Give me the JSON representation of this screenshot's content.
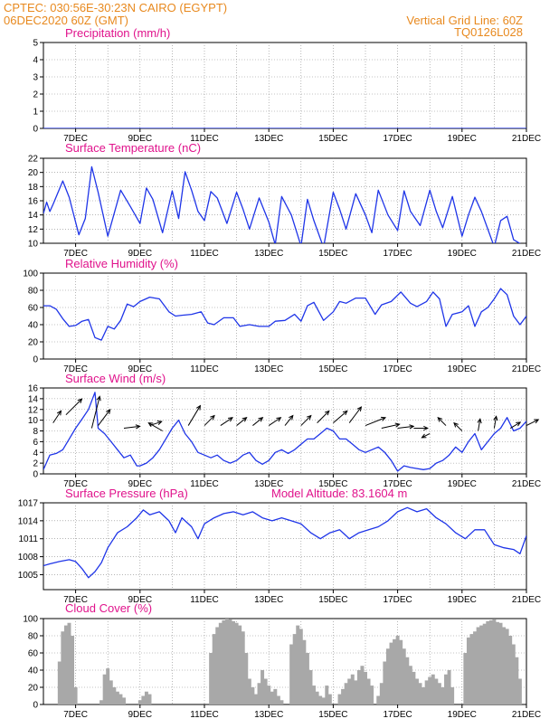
{
  "header": {
    "line1_left": "CPTEC:   030:56E-30:23N   CAIRO (EGYPT)",
    "line2_left": "06DEC2020 60Z (GMT)",
    "line1_right": "Vertical Grid Line: 60Z",
    "line2_right": "TQ0126L028"
  },
  "colors": {
    "header": "#e8891e",
    "title": "#e0138c",
    "line": "#1f35e8",
    "bar": "#a8a8a8",
    "grid": "#888888"
  },
  "x_axis": {
    "start_day": 6.0,
    "end_day": 21.0,
    "ticks": [
      7,
      9,
      11,
      13,
      15,
      17,
      19,
      21
    ],
    "tick_labels": [
      "7DEC",
      "9DEC",
      "11DEC",
      "13DEC",
      "15DEC",
      "17DEC",
      "19DEC",
      "21DEC"
    ]
  },
  "chart_data": [
    {
      "id": "precip",
      "type": "line",
      "title": "Precipitation (mm/h)",
      "ylim": [
        0,
        5
      ],
      "yticks": [
        0,
        1,
        2,
        3,
        4,
        5
      ],
      "x": [
        6.0,
        21.0
      ],
      "y": [
        0,
        0
      ]
    },
    {
      "id": "temp",
      "type": "line",
      "title": "Surface Temperature (nC)",
      "ylim": [
        10,
        22
      ],
      "yticks": [
        10,
        12,
        14,
        16,
        18,
        20,
        22
      ],
      "x": [
        6.0,
        6.1,
        6.2,
        6.3,
        6.6,
        6.8,
        7.1,
        7.3,
        7.5,
        7.7,
        8.0,
        8.4,
        8.7,
        9.0,
        9.2,
        9.4,
        9.7,
        10.0,
        10.2,
        10.4,
        10.6,
        10.8,
        11.0,
        11.2,
        11.4,
        11.7,
        12.0,
        12.2,
        12.4,
        12.7,
        13.0,
        13.2,
        13.4,
        13.7,
        14.0,
        14.2,
        14.4,
        14.7,
        15.0,
        15.2,
        15.4,
        15.7,
        16.0,
        16.2,
        16.4,
        16.7,
        17.0,
        17.2,
        17.4,
        17.7,
        18.0,
        18.2,
        18.4,
        18.7,
        19.0,
        19.2,
        19.4,
        19.6,
        20.0,
        20.2,
        20.4,
        20.6,
        20.9,
        21.0
      ],
      "y": [
        14.2,
        15.8,
        14.5,
        15.5,
        18.8,
        16.5,
        11.2,
        13.5,
        20.8,
        17.2,
        11.0,
        17.5,
        15.2,
        12.8,
        17.8,
        16.2,
        11.5,
        17.4,
        13.5,
        20.1,
        17.5,
        14.5,
        13.2,
        17.3,
        16.4,
        12.8,
        17.2,
        14.8,
        12.0,
        16.4,
        13.0,
        9.8,
        16.6,
        14.0,
        9.6,
        16.2,
        13.2,
        9.4,
        17.2,
        14.8,
        12.0,
        17.0,
        14.0,
        11.5,
        17.5,
        14.0,
        11.8,
        17.4,
        14.5,
        12.5,
        17.5,
        14.5,
        12.2,
        16.6,
        11.0,
        14.0,
        16.5,
        14.5,
        9.5,
        13.2,
        13.8,
        10.5,
        9.7,
        9.5
      ]
    },
    {
      "id": "rh",
      "type": "line",
      "title": "Relative Humidity (%)",
      "ylim": [
        0,
        100
      ],
      "yticks": [
        0,
        20,
        40,
        60,
        80,
        100
      ],
      "x": [
        6.0,
        6.2,
        6.4,
        6.6,
        6.8,
        7.0,
        7.2,
        7.4,
        7.6,
        7.8,
        8.0,
        8.2,
        8.4,
        8.6,
        8.8,
        9.0,
        9.3,
        9.6,
        9.9,
        10.1,
        10.3,
        10.6,
        10.9,
        11.1,
        11.3,
        11.6,
        11.9,
        12.1,
        12.4,
        12.7,
        13.0,
        13.2,
        13.5,
        13.8,
        14.0,
        14.2,
        14.4,
        14.7,
        15.0,
        15.2,
        15.4,
        15.7,
        16.0,
        16.3,
        16.5,
        16.8,
        17.1,
        17.4,
        17.6,
        17.9,
        18.1,
        18.3,
        18.5,
        18.7,
        19.0,
        19.2,
        19.4,
        19.6,
        19.8,
        20.0,
        20.2,
        20.4,
        20.6,
        20.8,
        21.0
      ],
      "y": [
        62,
        62,
        58,
        47,
        38,
        39,
        44,
        46,
        25,
        22,
        38,
        35,
        45,
        64,
        61,
        67,
        72,
        70,
        55,
        50,
        51,
        52,
        55,
        42,
        40,
        48,
        48,
        38,
        40,
        38,
        38,
        44,
        45,
        52,
        44,
        62,
        66,
        45,
        55,
        67,
        65,
        71,
        71,
        52,
        63,
        67,
        78,
        65,
        61,
        67,
        78,
        70,
        38,
        52,
        55,
        62,
        38,
        55,
        60,
        70,
        82,
        75,
        50,
        40,
        50
      ]
    },
    {
      "id": "wind",
      "type": "line",
      "title": "Surface Wind (m/s)",
      "ylim": [
        0,
        16
      ],
      "yticks": [
        0,
        2,
        4,
        6,
        8,
        10,
        12,
        14,
        16
      ],
      "x": [
        6.0,
        6.2,
        6.4,
        6.6,
        6.8,
        7.0,
        7.2,
        7.4,
        7.6,
        7.7,
        7.9,
        8.1,
        8.3,
        8.5,
        8.7,
        8.9,
        9.0,
        9.2,
        9.4,
        9.6,
        9.8,
        10.0,
        10.2,
        10.4,
        10.6,
        10.8,
        11.0,
        11.2,
        11.4,
        11.6,
        11.8,
        12.0,
        12.2,
        12.4,
        12.6,
        12.8,
        13.0,
        13.2,
        13.4,
        13.6,
        13.8,
        14.0,
        14.2,
        14.4,
        14.6,
        14.8,
        15.0,
        15.2,
        15.4,
        15.6,
        15.8,
        16.0,
        16.2,
        16.4,
        16.6,
        16.8,
        17.0,
        17.2,
        17.4,
        17.6,
        17.8,
        18.0,
        18.2,
        18.4,
        18.6,
        18.8,
        19.0,
        19.2,
        19.4,
        19.6,
        19.8,
        20.0,
        20.2,
        20.4,
        20.6,
        20.8,
        21.0
      ],
      "y": [
        0.8,
        3.5,
        3.8,
        4.5,
        6.5,
        8.5,
        10.2,
        12.0,
        15.2,
        8.5,
        7.5,
        6.0,
        4.5,
        3.0,
        3.5,
        1.5,
        1.5,
        2.0,
        3.0,
        4.5,
        6.5,
        8.5,
        10.0,
        7.5,
        6.0,
        4.0,
        3.5,
        3.0,
        3.5,
        2.5,
        2.0,
        2.5,
        3.5,
        4.0,
        2.5,
        1.8,
        2.5,
        4.0,
        4.5,
        3.8,
        4.5,
        5.5,
        6.5,
        6.5,
        7.5,
        8.5,
        8.0,
        6.5,
        6.5,
        5.5,
        4.5,
        4.0,
        4.5,
        5.0,
        4.0,
        2.5,
        0.5,
        1.5,
        1.2,
        1.0,
        0.8,
        1.0,
        2.0,
        2.5,
        3.5,
        5.0,
        4.0,
        6.0,
        7.5,
        4.5,
        6.0,
        7.5,
        8.5,
        10.5,
        8.0,
        8.5,
        9.8
      ]
    },
    {
      "id": "pressure",
      "type": "line",
      "title": "Surface Pressure (hPa)",
      "subtitle": "Model Altitude: 83.1604 m",
      "ylim": [
        1002.5,
        1017
      ],
      "yticks": [
        1005,
        1008,
        1011,
        1014,
        1017
      ],
      "x": [
        6.0,
        6.2,
        6.5,
        6.8,
        7.0,
        7.2,
        7.4,
        7.6,
        7.8,
        8.0,
        8.3,
        8.6,
        8.9,
        9.1,
        9.3,
        9.6,
        9.9,
        10.1,
        10.3,
        10.6,
        10.8,
        11.0,
        11.3,
        11.6,
        11.9,
        12.2,
        12.5,
        12.8,
        13.1,
        13.4,
        13.7,
        14.0,
        14.3,
        14.6,
        14.9,
        15.2,
        15.5,
        15.8,
        16.1,
        16.4,
        16.7,
        17.0,
        17.3,
        17.6,
        17.9,
        18.2,
        18.5,
        18.8,
        19.1,
        19.4,
        19.7,
        20.0,
        20.3,
        20.6,
        20.8,
        21.0
      ],
      "y": [
        1006.5,
        1006.8,
        1007.2,
        1007.5,
        1007.2,
        1006.0,
        1004.5,
        1005.5,
        1007.0,
        1009.5,
        1012.0,
        1013.0,
        1014.5,
        1015.8,
        1015.0,
        1015.5,
        1014.0,
        1012.0,
        1014.5,
        1013.0,
        1011.0,
        1013.5,
        1014.5,
        1015.2,
        1015.5,
        1015.0,
        1015.5,
        1014.5,
        1014.0,
        1014.5,
        1014.0,
        1013.5,
        1012.0,
        1011.0,
        1012.0,
        1012.5,
        1011.0,
        1012.0,
        1012.5,
        1013.0,
        1014.0,
        1015.5,
        1016.2,
        1015.5,
        1016.0,
        1014.5,
        1013.5,
        1012.0,
        1011.0,
        1012.5,
        1012.5,
        1010.0,
        1009.5,
        1009.2,
        1008.5,
        1011.5
      ]
    },
    {
      "id": "cloud",
      "type": "bar",
      "title": "Cloud Cover (%)",
      "ylim": [
        0,
        100
      ],
      "yticks": [
        0,
        20,
        40,
        60,
        80,
        100
      ],
      "x": [
        6.5,
        6.6,
        6.7,
        6.8,
        6.9,
        7.0,
        7.8,
        7.9,
        8.0,
        8.1,
        8.2,
        8.3,
        8.4,
        8.5,
        9.0,
        9.1,
        9.2,
        9.3,
        11.2,
        11.3,
        11.4,
        11.5,
        11.6,
        11.7,
        11.8,
        11.9,
        12.0,
        12.1,
        12.2,
        12.3,
        12.4,
        12.5,
        12.6,
        12.7,
        12.8,
        12.9,
        13.0,
        13.1,
        13.2,
        13.3,
        13.4,
        13.7,
        13.8,
        13.9,
        14.0,
        14.1,
        14.2,
        14.3,
        14.4,
        14.5,
        14.6,
        14.7,
        14.8,
        14.9,
        15.2,
        15.3,
        15.4,
        15.5,
        15.6,
        15.7,
        15.8,
        15.9,
        16.0,
        16.1,
        16.2,
        16.4,
        16.5,
        16.6,
        16.7,
        16.8,
        16.9,
        17.0,
        17.1,
        17.2,
        17.3,
        17.4,
        17.5,
        17.6,
        17.7,
        17.8,
        17.9,
        18.0,
        18.1,
        18.2,
        18.3,
        18.4,
        18.5,
        18.6,
        18.7,
        19.1,
        19.2,
        19.3,
        19.4,
        19.5,
        19.6,
        19.7,
        19.8,
        19.9,
        20.0,
        20.1,
        20.2,
        20.3,
        20.4,
        20.5,
        20.6,
        20.7,
        20.8
      ],
      "y": [
        50,
        85,
        92,
        95,
        80,
        20,
        5,
        35,
        42,
        28,
        20,
        15,
        12,
        8,
        5,
        10,
        15,
        12,
        60,
        82,
        90,
        95,
        98,
        100,
        99,
        97,
        95,
        92,
        85,
        60,
        30,
        20,
        12,
        25,
        40,
        30,
        22,
        15,
        18,
        10,
        5,
        70,
        82,
        92,
        88,
        75,
        60,
        40,
        22,
        15,
        10,
        8,
        22,
        12,
        12,
        18,
        25,
        30,
        35,
        28,
        40,
        45,
        38,
        30,
        22,
        10,
        25,
        50,
        65,
        72,
        76,
        80,
        75,
        65,
        55,
        45,
        38,
        30,
        25,
        20,
        28,
        32,
        35,
        30,
        25,
        20,
        35,
        40,
        20,
        60,
        78,
        82,
        85,
        90,
        92,
        94,
        97,
        98,
        99,
        96,
        95,
        90,
        88,
        80,
        70,
        55,
        30
      ]
    }
  ],
  "wind_arrows": {
    "description": "wind direction vectors",
    "x": [
      6.3,
      6.7,
      7.5,
      7.7,
      8.5,
      9.3,
      9.7,
      10.5,
      11.0,
      11.5,
      12.0,
      12.5,
      13.0,
      13.5,
      14.0,
      14.5,
      15.0,
      15.5,
      16.0,
      16.5,
      17.0,
      17.5,
      18.0,
      18.5,
      19.0,
      19.5,
      20.0,
      20.5,
      21.0
    ],
    "y": [
      9.5,
      11.0,
      8.5,
      9.0,
      8.5,
      9.0,
      8.0,
      9.0,
      9.0,
      9.0,
      9.0,
      9.0,
      9.0,
      9.0,
      9.0,
      9.5,
      9.5,
      9.5,
      9.0,
      8.5,
      8.5,
      8.5,
      7.5,
      9.0,
      8.0,
      8.0,
      8.5,
      8.5,
      9.0
    ],
    "u": [
      4,
      8,
      4,
      6,
      8,
      6,
      -7,
      6,
      5,
      6,
      5,
      5,
      6,
      4,
      5,
      6,
      7,
      6,
      10,
      9,
      8,
      7,
      -4,
      -4,
      -4,
      1,
      1,
      5,
      6
    ],
    "v": [
      6,
      8,
      16,
      8,
      1,
      2,
      4,
      10,
      5,
      4,
      4,
      4,
      4,
      5,
      5,
      6,
      6,
      8,
      4,
      2,
      1,
      0,
      -2,
      4,
      4,
      6,
      6,
      3,
      3
    ]
  }
}
